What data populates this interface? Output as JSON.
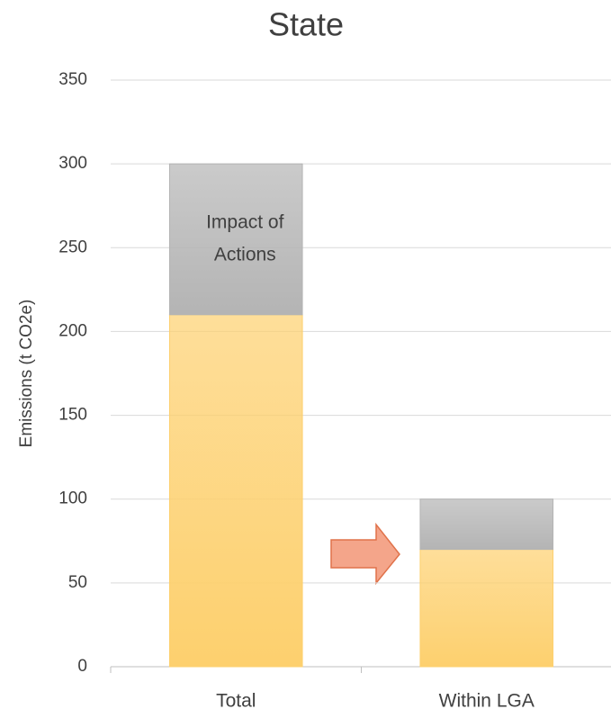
{
  "chart_data": {
    "type": "stacked_bar",
    "title": "State",
    "y_label": "Emissions (t CO2e)",
    "categories": [
      "Total",
      "Within LGA"
    ],
    "series": [
      {
        "color": "#fdd06e",
        "values": [
          210,
          70
        ]
      },
      {
        "color": "#b4b4b4",
        "values": [
          90,
          30
        ]
      }
    ],
    "annotation": [
      "Impact of",
      "Actions"
    ],
    "ylim": [
      0,
      350
    ],
    "yticks": [
      0,
      50,
      100,
      150,
      200,
      250,
      300,
      350
    ],
    "grid": true
  }
}
